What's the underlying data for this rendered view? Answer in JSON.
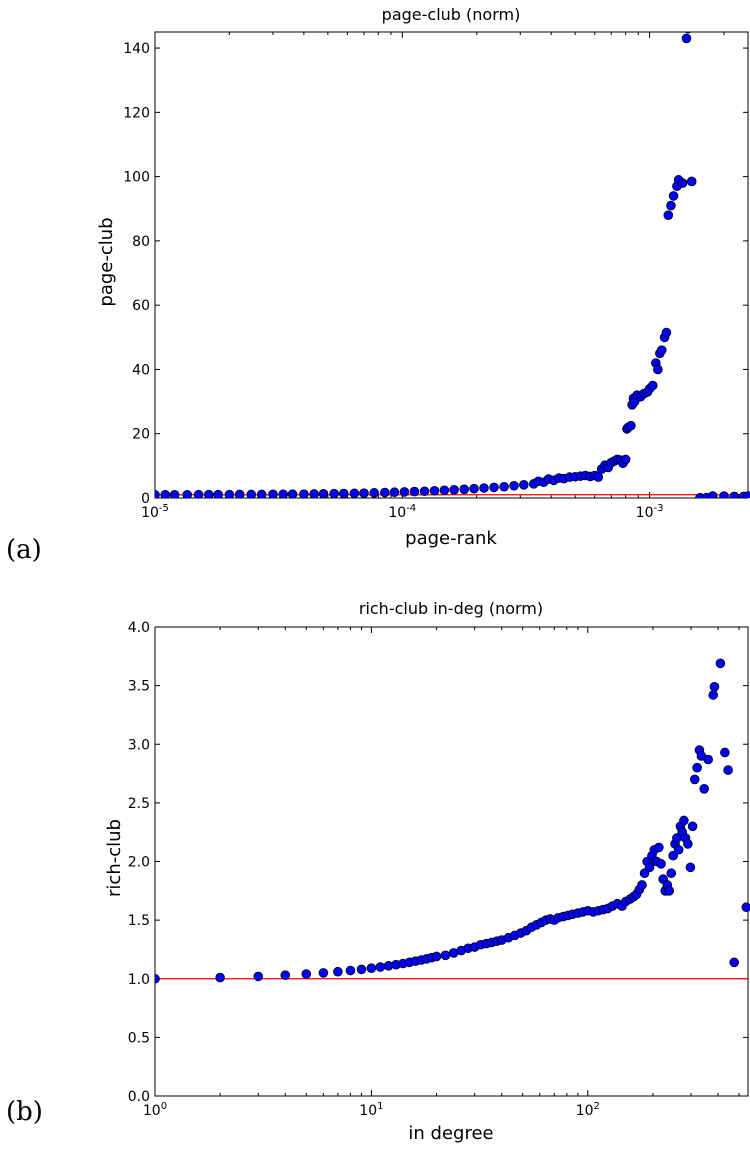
{
  "panels": {
    "a": {
      "label": "(a)"
    },
    "b": {
      "label": "(b)"
    }
  },
  "colors": {
    "marker_fill": "#0000ff",
    "marker_edge": "#000000",
    "reference_line": "#ff0000"
  },
  "chart_data": [
    {
      "type": "scatter",
      "title": "page-club (norm)",
      "xlabel": "page-rank",
      "ylabel": "page-club",
      "x_scale": "log",
      "xlim": [
        1e-05,
        0.0025
      ],
      "ylim": [
        0,
        145
      ],
      "x_ticks": [
        {
          "value": 1e-05,
          "base": "10",
          "exp": "-5"
        },
        {
          "value": 0.0001,
          "base": "10",
          "exp": "-4"
        },
        {
          "value": 0.001,
          "base": "10",
          "exp": "-3"
        }
      ],
      "y_ticks": [
        "0",
        "20",
        "40",
        "60",
        "80",
        "100",
        "120",
        "140"
      ],
      "grid": false,
      "legend": "none",
      "reference_line": {
        "y": 1,
        "color": "#ff0000"
      },
      "series": [
        {
          "points": [
            [
              1e-05,
              1.0
            ],
            [
              1.1e-05,
              1.0
            ],
            [
              1.2e-05,
              1.0
            ],
            [
              1.35e-05,
              1.0
            ],
            [
              1.5e-05,
              1.05
            ],
            [
              1.65e-05,
              1.05
            ],
            [
              1.8e-05,
              1.05
            ],
            [
              2e-05,
              1.05
            ],
            [
              2.2e-05,
              1.1
            ],
            [
              2.45e-05,
              1.1
            ],
            [
              2.7e-05,
              1.1
            ],
            [
              3e-05,
              1.15
            ],
            [
              3.3e-05,
              1.15
            ],
            [
              3.6e-05,
              1.2
            ],
            [
              4e-05,
              1.2
            ],
            [
              4.4e-05,
              1.25
            ],
            [
              4.8e-05,
              1.3
            ],
            [
              5.3e-05,
              1.35
            ],
            [
              5.8e-05,
              1.4
            ],
            [
              6.4e-05,
              1.45
            ],
            [
              7e-05,
              1.5
            ],
            [
              7.7e-05,
              1.6
            ],
            [
              8.5e-05,
              1.7
            ],
            [
              9.3e-05,
              1.8
            ],
            [
              0.000102,
              1.9
            ],
            [
              0.000112,
              2.0
            ],
            [
              0.000123,
              2.1
            ],
            [
              0.000135,
              2.25
            ],
            [
              0.000148,
              2.4
            ],
            [
              0.000162,
              2.55
            ],
            [
              0.000178,
              2.7
            ],
            [
              0.000195,
              2.9
            ],
            [
              0.000214,
              3.1
            ],
            [
              0.000235,
              3.3
            ],
            [
              0.000258,
              3.5
            ],
            [
              0.000283,
              3.8
            ],
            [
              0.00031,
              4.1
            ],
            [
              0.00034,
              4.4
            ],
            [
              0.000355,
              5.2
            ],
            [
              0.000373,
              4.9
            ],
            [
              0.00039,
              5.9
            ],
            [
              0.00041,
              5.5
            ],
            [
              0.00043,
              6.2
            ],
            [
              0.00045,
              6.0
            ],
            [
              0.000475,
              6.5
            ],
            [
              0.0005,
              6.6
            ],
            [
              0.000525,
              6.8
            ],
            [
              0.00055,
              7.0
            ],
            [
              0.000575,
              6.7
            ],
            [
              0.0006,
              7.0
            ],
            [
              0.00062,
              6.5
            ],
            [
              0.00064,
              9.0
            ],
            [
              0.00066,
              10.2
            ],
            [
              0.00068,
              9.5
            ],
            [
              0.0007,
              11.0
            ],
            [
              0.00072,
              11.5
            ],
            [
              0.00074,
              12.0
            ],
            [
              0.00076,
              11.8
            ],
            [
              0.00078,
              10.8
            ],
            [
              0.0008,
              12.0
            ],
            [
              0.00081,
              21.5
            ],
            [
              0.00082,
              22.0
            ],
            [
              0.00084,
              22.5
            ],
            [
              0.00085,
              29.0
            ],
            [
              0.00086,
              31.0
            ],
            [
              0.00087,
              30.0
            ],
            [
              0.00089,
              32.0
            ],
            [
              0.00092,
              31.5
            ],
            [
              0.00095,
              32.5
            ],
            [
              0.00098,
              33.0
            ],
            [
              0.001,
              34.0
            ],
            [
              0.00103,
              35.0
            ],
            [
              0.00106,
              42.0
            ],
            [
              0.00108,
              40.0
            ],
            [
              0.0011,
              45.0
            ],
            [
              0.00112,
              46.0
            ],
            [
              0.00115,
              50.0
            ],
            [
              0.00117,
              51.5
            ],
            [
              0.00119,
              88.0
            ],
            [
              0.00122,
              91.0
            ],
            [
              0.00125,
              94.0
            ],
            [
              0.00129,
              97.0
            ],
            [
              0.00131,
              99.0
            ],
            [
              0.00136,
              98.0
            ],
            [
              0.00141,
              143.0
            ],
            [
              0.00143,
              146.0
            ],
            [
              0.00148,
              98.5
            ],
            [
              0.0016,
              0.1
            ],
            [
              0.0017,
              0.1
            ],
            [
              0.0018,
              0.6
            ],
            [
              0.002,
              0.6
            ],
            [
              0.0022,
              0.5
            ],
            [
              0.0024,
              0.5
            ],
            [
              0.0025,
              0.6
            ]
          ]
        }
      ]
    },
    {
      "type": "scatter",
      "title": "rich-club in-deg (norm)",
      "xlabel": "in degree",
      "ylabel": "rich-club",
      "x_scale": "log",
      "xlim": [
        1,
        550
      ],
      "ylim": [
        0,
        4.0
      ],
      "x_ticks": [
        {
          "value": 1,
          "base": "10",
          "exp": "0"
        },
        {
          "value": 10,
          "base": "10",
          "exp": "1"
        },
        {
          "value": 100,
          "base": "10",
          "exp": "2"
        }
      ],
      "y_ticks": [
        "0.0",
        "0.5",
        "1.0",
        "1.5",
        "2.0",
        "2.5",
        "3.0",
        "3.5",
        "4.0"
      ],
      "grid": false,
      "legend": "none",
      "reference_line": {
        "y": 1.0,
        "color": "#ff0000"
      },
      "series": [
        {
          "points": [
            [
              1,
              1.0
            ],
            [
              2,
              1.01
            ],
            [
              3,
              1.02
            ],
            [
              4,
              1.03
            ],
            [
              5,
              1.04
            ],
            [
              6,
              1.05
            ],
            [
              7,
              1.06
            ],
            [
              8,
              1.07
            ],
            [
              9,
              1.08
            ],
            [
              10,
              1.09
            ],
            [
              11,
              1.1
            ],
            [
              12,
              1.11
            ],
            [
              13,
              1.12
            ],
            [
              14,
              1.13
            ],
            [
              15,
              1.14
            ],
            [
              16,
              1.15
            ],
            [
              17,
              1.16
            ],
            [
              18,
              1.17
            ],
            [
              19,
              1.18
            ],
            [
              20,
              1.19
            ],
            [
              22,
              1.2
            ],
            [
              24,
              1.22
            ],
            [
              26,
              1.24
            ],
            [
              28,
              1.26
            ],
            [
              30,
              1.27
            ],
            [
              32,
              1.29
            ],
            [
              34,
              1.3
            ],
            [
              36,
              1.31
            ],
            [
              38,
              1.32
            ],
            [
              40,
              1.33
            ],
            [
              43,
              1.35
            ],
            [
              46,
              1.37
            ],
            [
              49,
              1.39
            ],
            [
              52,
              1.41
            ],
            [
              55,
              1.44
            ],
            [
              58,
              1.46
            ],
            [
              61,
              1.48
            ],
            [
              64,
              1.5
            ],
            [
              67,
              1.51
            ],
            [
              70,
              1.5
            ],
            [
              73,
              1.52
            ],
            [
              77,
              1.53
            ],
            [
              81,
              1.54
            ],
            [
              85,
              1.55
            ],
            [
              90,
              1.56
            ],
            [
              95,
              1.57
            ],
            [
              100,
              1.58
            ],
            [
              106,
              1.57
            ],
            [
              112,
              1.58
            ],
            [
              118,
              1.59
            ],
            [
              124,
              1.6
            ],
            [
              130,
              1.62
            ],
            [
              137,
              1.64
            ],
            [
              144,
              1.62
            ],
            [
              150,
              1.66
            ],
            [
              157,
              1.68
            ],
            [
              163,
              1.7
            ],
            [
              168,
              1.72
            ],
            [
              173,
              1.76
            ],
            [
              178,
              1.8
            ],
            [
              183,
              1.9
            ],
            [
              188,
              2.0
            ],
            [
              193,
              1.95
            ],
            [
              198,
              2.05
            ],
            [
              203,
              2.1
            ],
            [
              208,
              2.0
            ],
            [
              213,
              2.12
            ],
            [
              218,
              1.98
            ],
            [
              223,
              1.85
            ],
            [
              228,
              1.75
            ],
            [
              233,
              1.8
            ],
            [
              238,
              1.75
            ],
            [
              243,
              1.9
            ],
            [
              248,
              2.05
            ],
            [
              253,
              2.15
            ],
            [
              258,
              2.2
            ],
            [
              263,
              2.1
            ],
            [
              268,
              2.3
            ],
            [
              273,
              2.25
            ],
            [
              278,
              2.35
            ],
            [
              283,
              2.2
            ],
            [
              290,
              2.15
            ],
            [
              298,
              1.95
            ],
            [
              305,
              2.3
            ],
            [
              312,
              2.7
            ],
            [
              320,
              2.8
            ],
            [
              328,
              2.95
            ],
            [
              335,
              2.9
            ],
            [
              345,
              2.62
            ],
            [
              360,
              2.87
            ],
            [
              380,
              3.42
            ],
            [
              385,
              3.49
            ],
            [
              410,
              3.69
            ],
            [
              430,
              2.93
            ],
            [
              445,
              2.78
            ],
            [
              475,
              1.14
            ],
            [
              540,
              1.61
            ]
          ]
        }
      ]
    }
  ]
}
